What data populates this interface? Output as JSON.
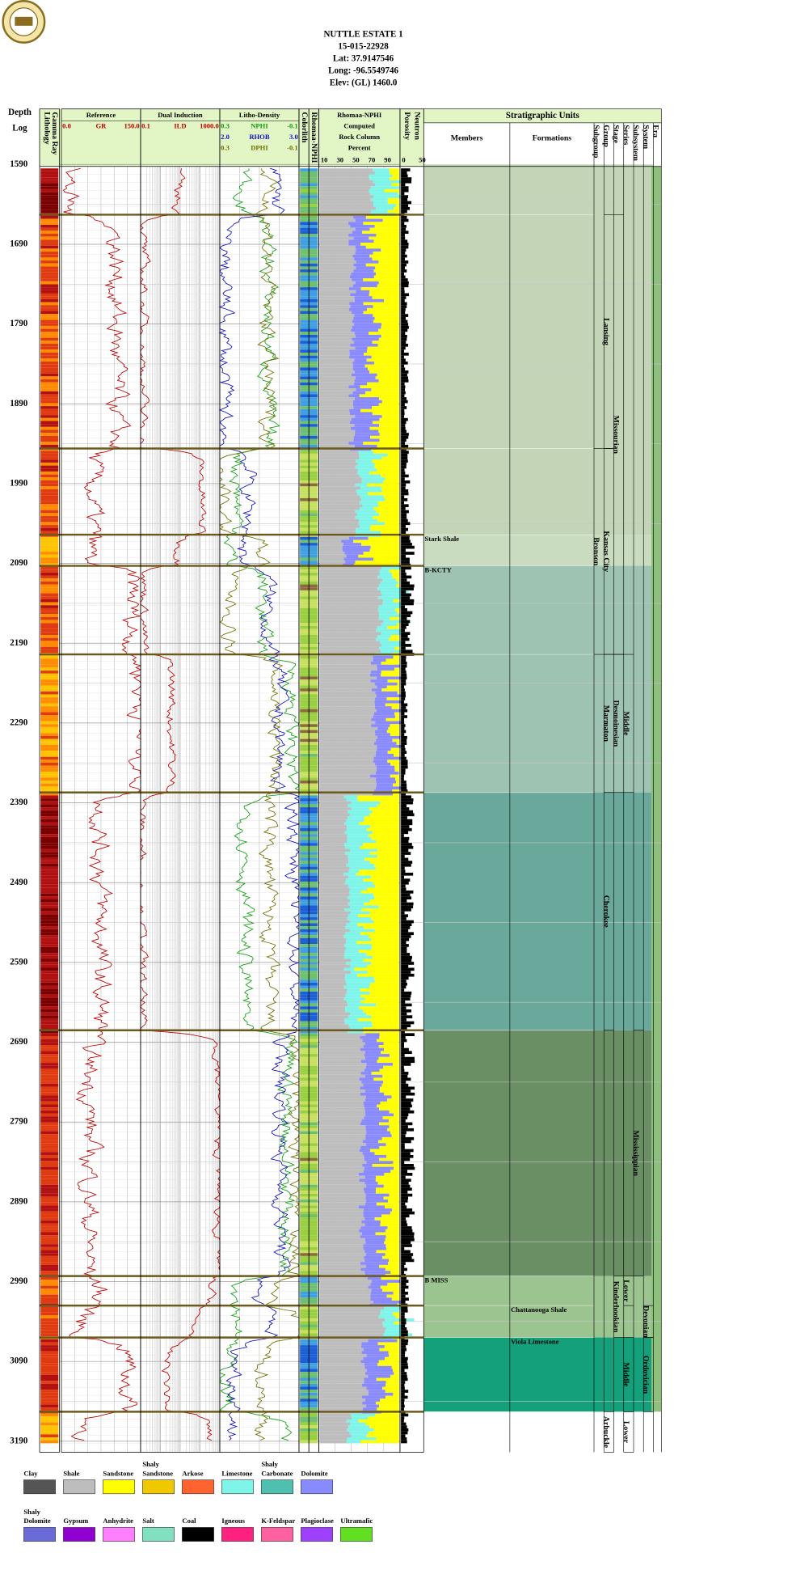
{
  "header": {
    "lines": [
      "NUTTLE ESTATE 1",
      "15-015-22928",
      "Lat: 37.9147546",
      "Long: -96.5549746",
      "Elev: (GL) 1460.0"
    ]
  },
  "tracks": {
    "depth": {
      "lines": [
        "Depth",
        "Log"
      ]
    },
    "lithology": {
      "lines": [
        "Lithology",
        "Gamma Ray"
      ]
    },
    "reference": {
      "title": "Reference",
      "curves": [
        {
          "min": "0.0",
          "name": "GR",
          "max": "150.0",
          "color": "#c00000"
        }
      ]
    },
    "induction": {
      "title": "Dual Induction",
      "curves": [
        {
          "min": "0.1",
          "name": "ILD",
          "max": "1000.0",
          "color": "#c00000"
        }
      ]
    },
    "density": {
      "title": "Litho-Density",
      "curves": [
        {
          "min": "0.3",
          "name": "NPHI",
          "max": "-0.1",
          "color": "#10a010"
        },
        {
          "min": "2.0",
          "name": "RHOB",
          "max": "3.0",
          "color": "#1010c0"
        },
        {
          "min": "0.3",
          "name": "DPHI",
          "max": "-0.1",
          "color": "#707000"
        }
      ]
    },
    "colorlith": {
      "lines": [
        "Colorlith",
        "Rhomaa-NPHI"
      ]
    },
    "rhomaa": {
      "lines": [
        "Rhomaa-NPHI",
        "Computed",
        "Rock Column",
        "Percent"
      ],
      "scale": [
        10,
        30,
        50,
        70,
        90
      ]
    },
    "neutron": {
      "lines": [
        "Porosity",
        "Neutron"
      ],
      "scale": [
        0,
        50
      ]
    }
  },
  "depths": [
    1590,
    1690,
    1790,
    1890,
    1990,
    2090,
    2190,
    2290,
    2390,
    2490,
    2590,
    2690,
    2790,
    2890,
    2990,
    3090,
    3190
  ],
  "strat": {
    "title": "Stratigraphic Units",
    "columns": [
      "Members",
      "Formations",
      "Subgroup",
      "Group",
      "Stage",
      "Series",
      "Subsystem",
      "System",
      "Era"
    ],
    "tops": [
      1653,
      1946,
      2054,
      2093,
      2204,
      2377,
      2675,
      2983,
      3020,
      3060,
      3153
    ],
    "bands": [
      {
        "top": 1590,
        "base": 2054,
        "color": "#c3d5b6"
      },
      {
        "top": 2054,
        "base": 2093,
        "color": "#cadcc0"
      },
      {
        "top": 2093,
        "base": 2377,
        "color": "#9ec3b3"
      },
      {
        "top": 2377,
        "base": 2675,
        "color": "#6aa89b"
      },
      {
        "top": 2675,
        "base": 2983,
        "color": "#6a8f64"
      },
      {
        "top": 2983,
        "base": 3060,
        "color": "#9cc490"
      },
      {
        "top": 3060,
        "base": 3153,
        "color": "#14a07a"
      }
    ],
    "labels": [
      {
        "text": "Stark Shale",
        "column": 0,
        "top": 2054,
        "base": 2093
      },
      {
        "text": "B-KCTY",
        "column": 0,
        "top": 2093,
        "base": 2204
      },
      {
        "text": "B MISS",
        "column": 0,
        "top": 2983,
        "base": 3020
      },
      {
        "text": "Chattanooga Shale",
        "column": 1,
        "top": 3020,
        "base": 3060
      },
      {
        "text": "Viola Limestone",
        "column": 1,
        "top": 3060,
        "base": 3153
      },
      {
        "text": "Bronson",
        "column": 2,
        "top": 1946,
        "base": 2204
      },
      {
        "text": "Lansing",
        "column": 3,
        "top": 1653,
        "base": 1946
      },
      {
        "text": "Kansas City",
        "column": 3,
        "top": 1946,
        "base": 2204
      },
      {
        "text": "Marmaton",
        "column": 3,
        "top": 2204,
        "base": 2377
      },
      {
        "text": "Cherokee",
        "column": 3,
        "top": 2377,
        "base": 2675
      },
      {
        "text": "Arbuckle",
        "column": 3,
        "top": 3153,
        "base": 3204
      },
      {
        "text": "Missourian",
        "column": 4,
        "top": 1653,
        "base": 2204
      },
      {
        "text": "Desmoinesian",
        "column": 4,
        "top": 2204,
        "base": 2377
      },
      {
        "text": "Kinderhookian",
        "column": 4,
        "top": 2983,
        "base": 3060
      },
      {
        "text": "Middle",
        "column": 5,
        "top": 2204,
        "base": 2377
      },
      {
        "text": "Lower",
        "column": 5,
        "top": 2983,
        "base": 3020
      },
      {
        "text": "Middle",
        "column": 5,
        "top": 3060,
        "base": 3153
      },
      {
        "text": "Lower",
        "column": 5,
        "top": 3153,
        "base": 3204
      },
      {
        "text": "Mississippian",
        "column": 6,
        "top": 2675,
        "base": 2983
      },
      {
        "text": "Devonian",
        "column": 7,
        "top": 3020,
        "base": 3060
      },
      {
        "text": "Ordovician",
        "column": 7,
        "top": 3060,
        "base": 3153
      }
    ]
  },
  "legend": [
    [
      {
        "lines": [
          "Clay"
        ],
        "color": "#555555"
      },
      {
        "lines": [
          "Shale"
        ],
        "color": "#bdbdbd"
      },
      {
        "lines": [
          "Sandstone"
        ],
        "color": "#ffff00"
      },
      {
        "lines": [
          "Shaly",
          "Sandstone"
        ],
        "color": "#f0c800"
      },
      {
        "lines": [
          "Arkose"
        ],
        "color": "#ff6430"
      },
      {
        "lines": [
          "Limestone"
        ],
        "color": "#7ff5ea"
      },
      {
        "lines": [
          "Shaly",
          "Carbonate"
        ],
        "color": "#4fbfb0"
      },
      {
        "lines": [
          "Dolomite"
        ],
        "color": "#8a8aff"
      }
    ],
    [
      {
        "lines": [
          "Shaly",
          "Dolomite"
        ],
        "color": "#6a6ad8"
      },
      {
        "lines": [
          "Gypsum"
        ],
        "color": "#9000d0"
      },
      {
        "lines": [
          "Anhydrite"
        ],
        "color": "#ff80ff"
      },
      {
        "lines": [
          "Salt"
        ],
        "color": "#80e0c0"
      },
      {
        "lines": [
          "Coal"
        ],
        "color": "#000000"
      },
      {
        "lines": [
          "Igneous"
        ],
        "color": "#ff2080"
      },
      {
        "lines": [
          "K-Feldspar"
        ],
        "color": "#ff60a0"
      },
      {
        "lines": [
          "Plagioclase"
        ],
        "color": "#a040ff"
      },
      {
        "lines": [
          "Ultramafic"
        ],
        "color": "#60e020"
      }
    ]
  ]
}
